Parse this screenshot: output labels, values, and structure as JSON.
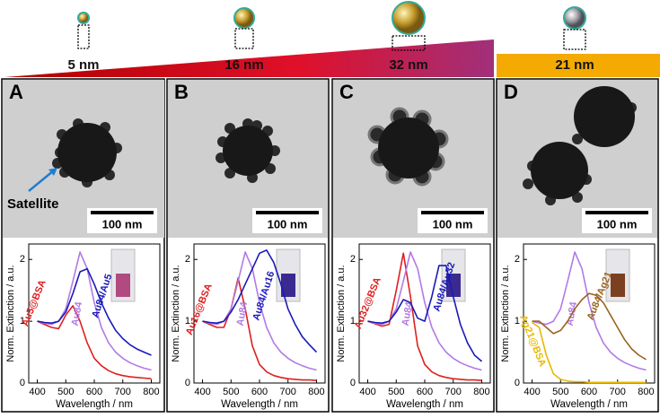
{
  "header": {
    "sizes": [
      "5 nm",
      "16 nm",
      "32 nm",
      "21 nm"
    ]
  },
  "panels": [
    {
      "letter": "A",
      "scale_bar": "100 nm",
      "annotation": "Satellite"
    },
    {
      "letter": "B",
      "scale_bar": "100 nm"
    },
    {
      "letter": "C",
      "scale_bar": "100 nm"
    },
    {
      "letter": "D",
      "scale_bar": "100 nm"
    }
  ],
  "chart_data": [
    {
      "type": "line",
      "xlabel": "Wavelength / nm",
      "ylabel": "Norm. Extinction / a.u.",
      "xlim": [
        370,
        830
      ],
      "ylim": [
        0,
        2.25
      ],
      "xticks": [
        400,
        500,
        600,
        700,
        800
      ],
      "yticks": [
        0,
        1,
        2
      ],
      "x": [
        400,
        425,
        450,
        475,
        500,
        525,
        550,
        575,
        600,
        625,
        650,
        675,
        700,
        725,
        750,
        775,
        800
      ],
      "series": [
        {
          "name": "Au5@BSA",
          "color": "#dd2020",
          "values": [
            1.0,
            0.95,
            0.9,
            0.88,
            1.1,
            1.25,
            1.0,
            0.65,
            0.4,
            0.28,
            0.2,
            0.15,
            0.12,
            0.1,
            0.09,
            0.08,
            0.07
          ]
        },
        {
          "name": "Au84",
          "color": "#b27ae6",
          "values": [
            1.0,
            0.97,
            0.95,
            1.0,
            1.2,
            1.65,
            2.12,
            1.85,
            1.3,
            0.9,
            0.65,
            0.5,
            0.4,
            0.33,
            0.28,
            0.24,
            0.21
          ]
        },
        {
          "name": "Au84/Au5",
          "color": "#1a1ab8",
          "values": [
            1.0,
            0.98,
            0.97,
            1.0,
            1.15,
            1.45,
            1.8,
            1.85,
            1.6,
            1.3,
            1.05,
            0.85,
            0.72,
            0.62,
            0.55,
            0.5,
            0.45
          ]
        }
      ]
    },
    {
      "type": "line",
      "xlabel": "Wavelength / nm",
      "ylabel": "Norm. Extinction / a.u.",
      "xlim": [
        370,
        830
      ],
      "ylim": [
        0,
        2.25
      ],
      "xticks": [
        400,
        500,
        600,
        700,
        800
      ],
      "yticks": [
        0,
        1,
        2
      ],
      "x": [
        400,
        425,
        450,
        475,
        500,
        525,
        550,
        575,
        600,
        625,
        650,
        675,
        700,
        725,
        750,
        775,
        800
      ],
      "series": [
        {
          "name": "Au16@BSA",
          "color": "#dd2020",
          "values": [
            1.0,
            0.95,
            0.9,
            0.9,
            1.2,
            1.7,
            1.2,
            0.6,
            0.3,
            0.18,
            0.12,
            0.09,
            0.07,
            0.06,
            0.05,
            0.05,
            0.04
          ]
        },
        {
          "name": "Au84",
          "color": "#b27ae6",
          "values": [
            1.0,
            0.97,
            0.95,
            1.0,
            1.2,
            1.65,
            2.12,
            1.85,
            1.3,
            0.9,
            0.65,
            0.5,
            0.4,
            0.33,
            0.28,
            0.24,
            0.21
          ]
        },
        {
          "name": "Au84/Au16",
          "color": "#1a1ab8",
          "values": [
            1.0,
            0.98,
            0.97,
            1.0,
            1.15,
            1.35,
            1.6,
            1.85,
            2.1,
            2.15,
            1.95,
            1.6,
            1.2,
            0.95,
            0.75,
            0.62,
            0.5
          ]
        }
      ]
    },
    {
      "type": "line",
      "xlabel": "Wavelength / nm",
      "ylabel": "Norm. Extinction / a.u.",
      "xlim": [
        370,
        830
      ],
      "ylim": [
        0,
        2.25
      ],
      "xticks": [
        400,
        500,
        600,
        700,
        800
      ],
      "yticks": [
        0,
        1,
        2
      ],
      "x": [
        400,
        425,
        450,
        475,
        500,
        525,
        550,
        575,
        600,
        625,
        650,
        675,
        700,
        725,
        750,
        775,
        800
      ],
      "series": [
        {
          "name": "Au32@BSA",
          "color": "#dd2020",
          "values": [
            1.0,
            0.96,
            0.92,
            0.95,
            1.5,
            2.1,
            1.4,
            0.6,
            0.3,
            0.18,
            0.12,
            0.09,
            0.07,
            0.06,
            0.05,
            0.05,
            0.04
          ]
        },
        {
          "name": "Au84",
          "color": "#b27ae6",
          "values": [
            1.0,
            0.97,
            0.95,
            1.0,
            1.2,
            1.65,
            2.12,
            1.85,
            1.3,
            0.9,
            0.65,
            0.5,
            0.4,
            0.33,
            0.28,
            0.24,
            0.21
          ]
        },
        {
          "name": "Au84/Au32",
          "color": "#1a1ab8",
          "values": [
            1.0,
            0.98,
            0.97,
            1.0,
            1.15,
            1.35,
            1.3,
            1.05,
            1.0,
            1.4,
            1.9,
            1.9,
            1.4,
            0.95,
            0.65,
            0.45,
            0.35
          ]
        }
      ]
    },
    {
      "type": "line",
      "xlabel": "Wavelength / nm",
      "ylabel": "Norm. Extinction / a.u.",
      "xlim": [
        370,
        830
      ],
      "ylim": [
        0,
        2.25
      ],
      "xticks": [
        400,
        500,
        600,
        700,
        800
      ],
      "yticks": [
        0,
        1,
        2
      ],
      "x": [
        400,
        425,
        450,
        475,
        500,
        525,
        550,
        575,
        600,
        625,
        650,
        675,
        700,
        725,
        750,
        775,
        800
      ],
      "series": [
        {
          "name": "Ag21@BSA",
          "color": "#e8b800",
          "values": [
            0.98,
            0.9,
            0.45,
            0.15,
            0.06,
            0.03,
            0.02,
            0.02,
            0.01,
            0.01,
            0.01,
            0.01,
            0.01,
            0.01,
            0.01,
            0.01,
            0.01
          ]
        },
        {
          "name": "Au84",
          "color": "#b27ae6",
          "values": [
            1.0,
            0.97,
            0.95,
            1.0,
            1.2,
            1.65,
            2.12,
            1.85,
            1.3,
            0.9,
            0.65,
            0.5,
            0.4,
            0.33,
            0.28,
            0.24,
            0.21
          ]
        },
        {
          "name": "Au84/Ag21",
          "color": "#9a6420",
          "values": [
            1.0,
            1.0,
            0.9,
            0.8,
            0.85,
            1.0,
            1.2,
            1.35,
            1.45,
            1.42,
            1.3,
            1.1,
            0.9,
            0.7,
            0.55,
            0.45,
            0.38
          ]
        }
      ]
    }
  ]
}
